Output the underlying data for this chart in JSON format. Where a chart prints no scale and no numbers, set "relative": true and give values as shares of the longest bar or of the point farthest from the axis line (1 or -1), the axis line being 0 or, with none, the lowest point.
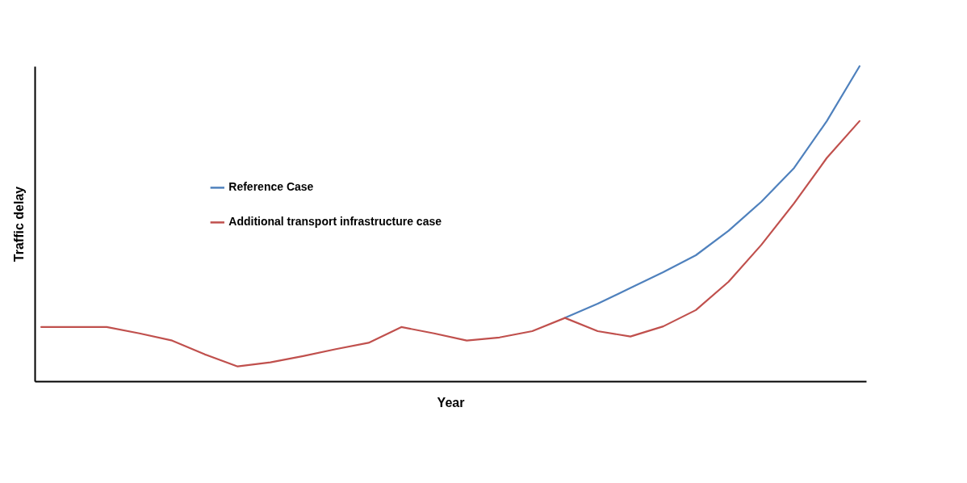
{
  "chart_data": {
    "type": "line",
    "relative": true,
    "xlabel": "Year",
    "ylabel": "Traffic delay",
    "legend": "left",
    "grid": false,
    "categories": [
      null,
      null,
      null,
      null,
      null,
      null,
      null,
      null,
      null,
      null,
      null,
      null,
      null,
      null,
      null,
      null,
      null,
      null,
      null,
      null,
      null,
      null,
      null,
      null,
      null,
      null
    ],
    "series": [
      {
        "name": "Reference Case",
        "color": "#4f81bd",
        "values": [
          null,
          null,
          null,
          null,
          null,
          null,
          null,
          null,
          null,
          null,
          null,
          null,
          null,
          null,
          null,
          null,
          0.201,
          0.246,
          0.296,
          0.346,
          0.4,
          0.478,
          0.57,
          0.677,
          0.826,
          1
        ]
      },
      {
        "name": "Additional transport infrastructure case",
        "color": "#c0504d",
        "values": [
          0.172,
          0.172,
          0.172,
          0.152,
          0.129,
          0.085,
          0.047,
          0.06,
          0.08,
          0.102,
          0.122,
          0.172,
          0.152,
          0.129,
          0.139,
          0.159,
          0.201,
          0.159,
          0.142,
          0.174,
          0.226,
          0.316,
          0.433,
          0.565,
          0.709,
          0.826
        ]
      }
    ]
  }
}
